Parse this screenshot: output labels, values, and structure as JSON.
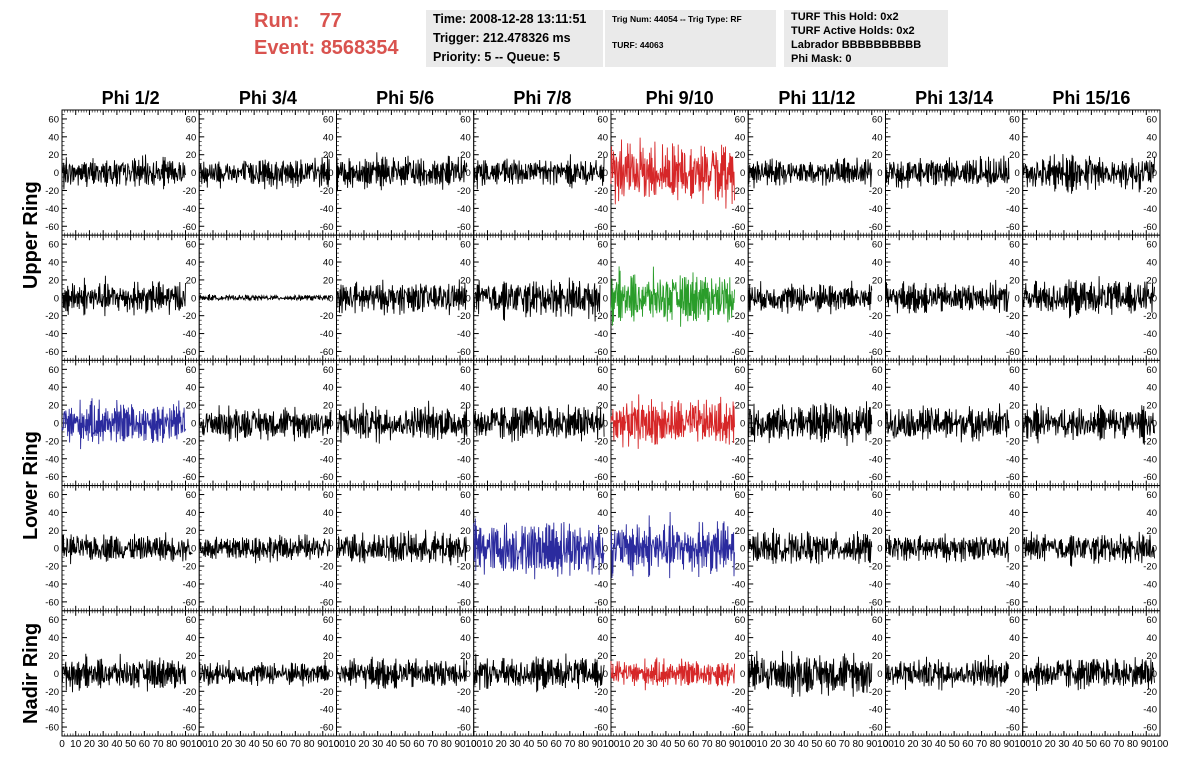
{
  "header": {
    "run_label": "Run:",
    "run_value": "77",
    "event_label": "Event:",
    "event_value": "8568354",
    "time_line": "Time: 2008-12-28 13:11:51",
    "trigger_line": "Trigger: 212.478326 ms",
    "priority_line": "Priority: 5 -- Queue: 5",
    "trig_num_line": "Trig Num: 44054 -- Trig Type: RF",
    "turf_line": "TURF: 44063",
    "turf_hold_line": "TURF This Hold: 0x2",
    "turf_active_line": "TURF Active Holds: 0x2",
    "labrador_line": "Labrador BBBBBBBBBB",
    "phi_mask_line": "Phi Mask: 0"
  },
  "colors": {
    "header_red": "#d9534f",
    "trace_default": "#000000",
    "trace_red": "#d62728",
    "trace_green": "#2a9d2a",
    "trace_blue": "#2b2b9e",
    "infobox_bg": "#eaeaea"
  },
  "chart_data": {
    "type": "line",
    "column_titles": [
      "Phi 1/2",
      "Phi 3/4",
      "Phi 5/6",
      "Phi 7/8",
      "Phi 9/10",
      "Phi 11/12",
      "Phi 13/14",
      "Phi 15/16"
    ],
    "ring_labels": [
      "Upper Ring",
      "Lower Ring",
      "Nadir Ring"
    ],
    "ring_label_row_spans": [
      [
        0,
        2
      ],
      [
        2,
        4
      ],
      [
        4,
        5
      ]
    ],
    "rows": 5,
    "columns": 8,
    "xlim": [
      0,
      100
    ],
    "ylim": [
      -70,
      70
    ],
    "x_tick_labels": [
      "0",
      "10",
      "20",
      "30",
      "40",
      "50",
      "60",
      "70",
      "80",
      "90",
      "100"
    ],
    "y_tick_labels": [
      "60",
      "40",
      "20",
      "0",
      "-20",
      "-40",
      "-60"
    ],
    "y_tick_values": [
      60,
      40,
      20,
      0,
      -20,
      -40,
      -60
    ],
    "grid": false,
    "panel_trace_colors": [
      [
        "black",
        "black",
        "black",
        "black",
        "red",
        "black",
        "black",
        "black"
      ],
      [
        "black",
        "black",
        "black",
        "black",
        "green",
        "black",
        "black",
        "black"
      ],
      [
        "blue",
        "black",
        "black",
        "black",
        "red",
        "black",
        "black",
        "black"
      ],
      [
        "black",
        "black",
        "black",
        "blue",
        "blue",
        "black",
        "black",
        "black"
      ],
      [
        "black",
        "black",
        "black",
        "black",
        "red",
        "black",
        "black",
        "black"
      ]
    ],
    "panel_amplitudes": [
      [
        20,
        20,
        22,
        20,
        40,
        18,
        20,
        24
      ],
      [
        22,
        4,
        22,
        25,
        32,
        20,
        20,
        24
      ],
      [
        28,
        22,
        24,
        25,
        30,
        25,
        24,
        22
      ],
      [
        18,
        18,
        22,
        38,
        36,
        22,
        18,
        20
      ],
      [
        20,
        16,
        20,
        22,
        18,
        28,
        20,
        22
      ]
    ],
    "panel_sample_range": [
      [
        [
          0,
          90
        ],
        [
          0,
          95
        ],
        [
          0,
          95
        ],
        [
          0,
          95
        ],
        [
          0,
          90
        ],
        [
          0,
          90
        ],
        [
          0,
          90
        ],
        [
          0,
          96
        ]
      ],
      [
        [
          0,
          90
        ],
        [
          0,
          96
        ],
        [
          0,
          95
        ],
        [
          0,
          92
        ],
        [
          0,
          90
        ],
        [
          0,
          90
        ],
        [
          0,
          90
        ],
        [
          0,
          96
        ]
      ],
      [
        [
          0,
          90
        ],
        [
          0,
          96
        ],
        [
          0,
          95
        ],
        [
          0,
          95
        ],
        [
          0,
          90
        ],
        [
          0,
          90
        ],
        [
          0,
          90
        ],
        [
          0,
          96
        ]
      ],
      [
        [
          0,
          95
        ],
        [
          0,
          95
        ],
        [
          0,
          95
        ],
        [
          0,
          95
        ],
        [
          0,
          90
        ],
        [
          0,
          90
        ],
        [
          0,
          90
        ],
        [
          0,
          96
        ]
      ],
      [
        [
          0,
          90
        ],
        [
          0,
          95
        ],
        [
          0,
          95
        ],
        [
          0,
          95
        ],
        [
          0,
          90
        ],
        [
          0,
          90
        ],
        [
          0,
          90
        ],
        [
          0,
          96
        ]
      ]
    ]
  }
}
